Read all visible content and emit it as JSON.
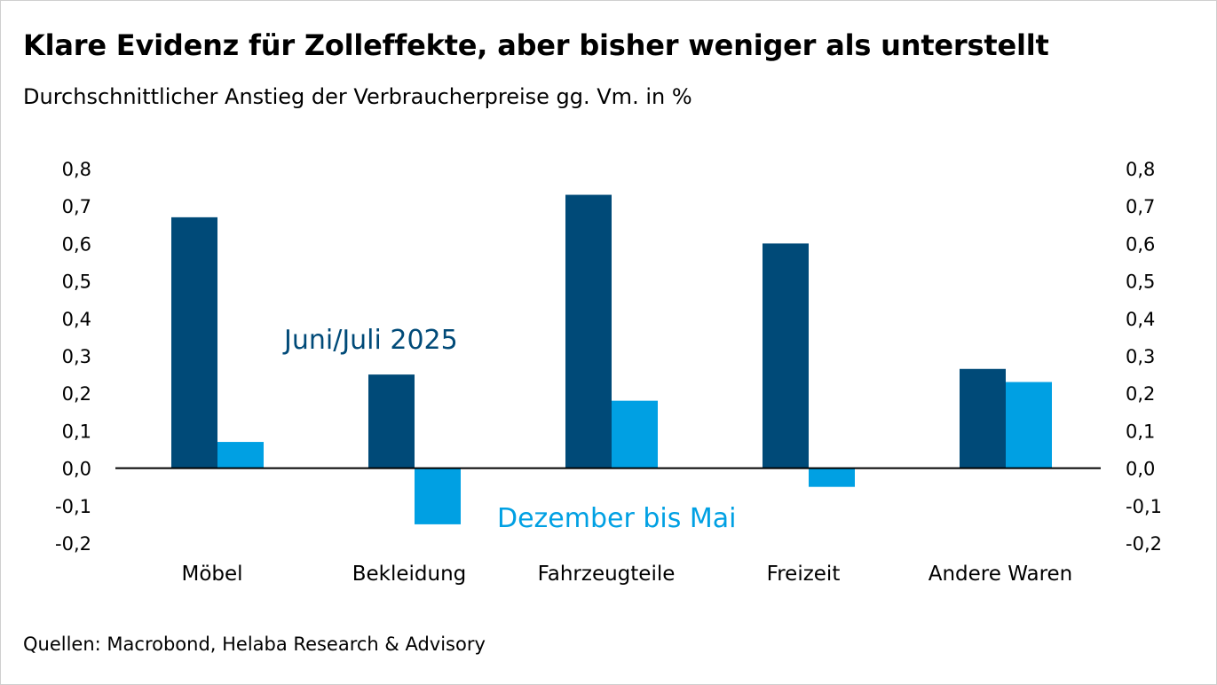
{
  "title": "Klare Evidenz für Zolleffekte, aber bisher weniger als unterstellt",
  "subtitle": "Durchschnittlicher Anstieg der Verbraucherpreise gg. Vm. in %",
  "source": "Quellen: Macrobond, Helaba Research & Advisory",
  "colors": {
    "series1": "#004a78",
    "series2": "#00a0e3",
    "axis": "#000000"
  },
  "chart_data": {
    "type": "bar",
    "title": "Klare Evidenz für Zolleffekte, aber bisher weniger als unterstellt",
    "ylabel": "Durchschnittlicher Anstieg der Verbraucherpreise gg. Vm. in %",
    "categories": [
      "Möbel",
      "Bekleidung",
      "Fahrzeugteile",
      "Freizeit",
      "Andere Waren"
    ],
    "series": [
      {
        "name": "Juni/Juli 2025",
        "values": [
          0.67,
          0.25,
          0.73,
          0.6,
          0.265
        ]
      },
      {
        "name": "Dezember bis Mai",
        "values": [
          0.07,
          -0.15,
          0.18,
          -0.05,
          0.23
        ]
      }
    ],
    "ylim": [
      -0.2,
      0.8
    ],
    "yticks": [
      "0,8",
      "0,7",
      "0,6",
      "0,5",
      "0,4",
      "0,3",
      "0,2",
      "0,1",
      "0,0",
      "-0,1",
      "-0,2"
    ],
    "ytick_values": [
      0.8,
      0.7,
      0.6,
      0.5,
      0.4,
      0.3,
      0.2,
      0.1,
      0.0,
      -0.1,
      -0.2
    ],
    "grid": false,
    "legend": "inline labels"
  }
}
